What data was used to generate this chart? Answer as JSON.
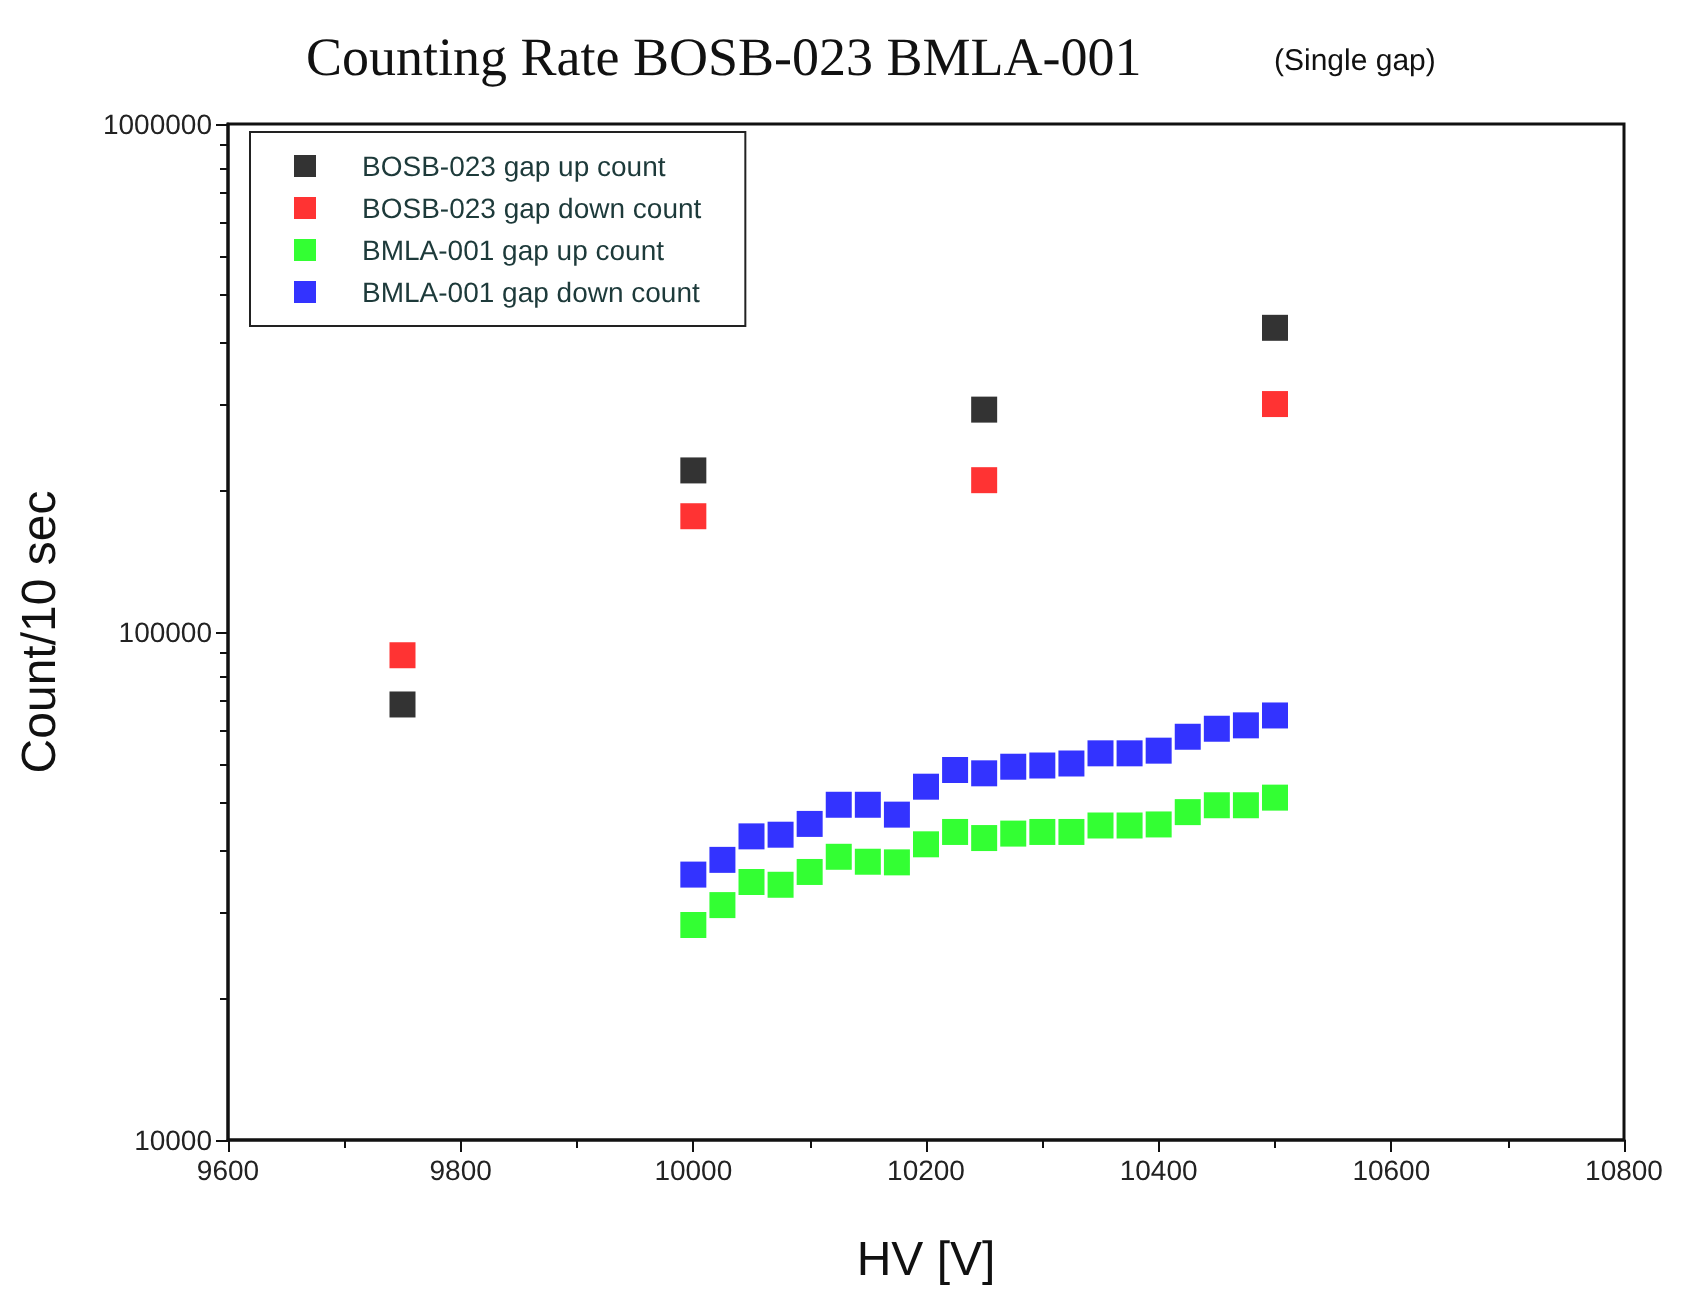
{
  "chart_data": {
    "type": "scatter",
    "title": "Counting Rate BOSB-023 BMLA-001",
    "subtitle": "(Single gap)",
    "xlabel": "HV [V]",
    "ylabel": "Count/10 sec",
    "log": "y",
    "xlim": [
      9600,
      10800
    ],
    "xticks": [
      9600,
      9800,
      10000,
      10200,
      10400,
      10600,
      10800
    ],
    "ylim": [
      10000,
      1000000
    ],
    "yticks": [
      10000,
      100000,
      1000000
    ],
    "grid": false,
    "legend": "top left",
    "marker": "square",
    "series": [
      {
        "name": "BOSB-023 gap up count",
        "color": "#000000",
        "x": [
          9750,
          10000,
          10250,
          10500
        ],
        "values": [
          72000,
          208000,
          274000,
          397000
        ]
      },
      {
        "name": "BOSB-023 gap down count",
        "color": "#ff0000",
        "x": [
          9750,
          10000,
          10250,
          10500
        ],
        "values": [
          90000,
          169000,
          199000,
          281000
        ]
      },
      {
        "name": "BMLA-001 gap up count",
        "color": "#00ff00",
        "x": [
          10000,
          10025,
          10050,
          10075,
          10100,
          10125,
          10150,
          10175,
          10200,
          10225,
          10250,
          10275,
          10300,
          10325,
          10350,
          10375,
          10400,
          10425,
          10450,
          10475,
          10500
        ],
        "values": [
          26500,
          29000,
          32200,
          31800,
          33700,
          36100,
          35300,
          35200,
          38200,
          40400,
          39300,
          40100,
          40400,
          40400,
          41600,
          41600,
          41800,
          44200,
          45600,
          45600,
          47200
        ]
      },
      {
        "name": "BMLA-001 gap down count",
        "color": "#0000ff",
        "x": [
          10000,
          10025,
          10050,
          10075,
          10100,
          10125,
          10150,
          10175,
          10200,
          10225,
          10250,
          10275,
          10300,
          10325,
          10350,
          10375,
          10400,
          10425,
          10450,
          10475,
          10500
        ],
        "values": [
          33300,
          35600,
          39600,
          39900,
          41900,
          45700,
          45700,
          43700,
          49600,
          53500,
          52700,
          54300,
          54600,
          55100,
          57700,
          57700,
          58400,
          62200,
          64500,
          65500,
          68500
        ]
      }
    ]
  }
}
